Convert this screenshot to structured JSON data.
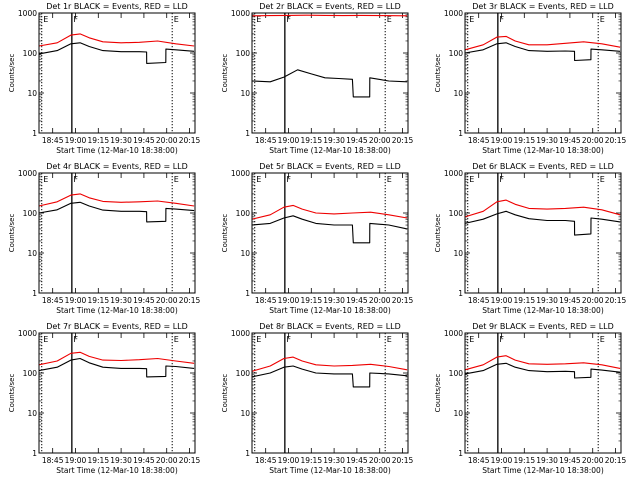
{
  "colors": {
    "events": "#000000",
    "lld": "#ee0000",
    "frame": "#000000",
    "background": "#ffffff"
  },
  "chart_data": [
    {
      "type": "line",
      "title": "Det 1r BLACK = Events, RED = LLD",
      "xlabel": "Start Time (12-Mar-10 18:38:00)",
      "ylabel": "Counts/sec",
      "y_scale": "log",
      "ylim": [
        1,
        1000
      ],
      "xlim": [
        18.6,
        20.31
      ],
      "x_ticks": [
        "18:45",
        "19:00",
        "19:15",
        "19:30",
        "19:45",
        "20:00",
        "20:15"
      ],
      "y_ticks": [
        "1",
        "10",
        "100",
        "1000"
      ],
      "markers": [
        {
          "label": "E",
          "x": 18.63
        },
        {
          "label": "F",
          "x": 18.96
        },
        {
          "label": "E",
          "x": 20.06
        }
      ],
      "series": [
        {
          "name": "Events",
          "color": "#000000",
          "x": [
            18.6,
            18.8,
            18.95,
            19.05,
            19.15,
            19.3,
            19.5,
            19.7,
            19.78,
            19.781,
            19.99,
            19.991,
            20.1,
            20.3
          ],
          "y": [
            95,
            115,
            170,
            180,
            145,
            115,
            108,
            108,
            106,
            55,
            58,
            125,
            120,
            110
          ]
        },
        {
          "name": "LLD",
          "color": "#ee0000",
          "x": [
            18.6,
            18.8,
            18.95,
            19.05,
            19.15,
            19.3,
            19.5,
            19.7,
            19.9,
            20.1,
            20.3
          ],
          "y": [
            150,
            180,
            280,
            300,
            240,
            190,
            180,
            185,
            200,
            170,
            150
          ]
        }
      ]
    },
    {
      "type": "line",
      "title": "Det 2r BLACK = Events, RED = LLD",
      "xlabel": "Start Time (12-Mar-10 18:38:00)",
      "ylabel": "Counts/sec",
      "y_scale": "log",
      "ylim": [
        1,
        1000
      ],
      "xlim": [
        18.6,
        20.31
      ],
      "x_ticks": [
        "18:45",
        "19:00",
        "19:15",
        "19:30",
        "19:45",
        "20:00",
        "20:15"
      ],
      "y_ticks": [
        "1",
        "10",
        "100",
        "1000"
      ],
      "markers": [
        {
          "label": "E",
          "x": 18.63
        },
        {
          "label": "F",
          "x": 18.96
        },
        {
          "label": "E",
          "x": 20.06
        }
      ],
      "series": [
        {
          "name": "Events",
          "color": "#000000",
          "x": [
            18.6,
            18.8,
            18.95,
            19.1,
            19.25,
            19.4,
            19.55,
            19.7,
            19.71,
            19.89,
            19.891,
            20.1,
            20.3
          ],
          "y": [
            20,
            19,
            25,
            38,
            30,
            24,
            23,
            22,
            8,
            8,
            24,
            20,
            19
          ]
        },
        {
          "name": "LLD",
          "color": "#ee0000",
          "x": [
            18.6,
            18.8,
            19.0,
            19.2,
            19.4,
            19.6,
            19.8,
            20.0,
            20.3
          ],
          "y": [
            850,
            860,
            870,
            880,
            870,
            860,
            870,
            860,
            850
          ]
        }
      ]
    },
    {
      "type": "line",
      "title": "Det 3r BLACK = Events, RED = LLD",
      "xlabel": "Start Time (12-Mar-10 18:38:00)",
      "ylabel": "Counts/sec",
      "y_scale": "log",
      "ylim": [
        1,
        1000
      ],
      "xlim": [
        18.6,
        20.31
      ],
      "x_ticks": [
        "18:45",
        "19:00",
        "19:15",
        "19:30",
        "19:45",
        "20:00",
        "20:15"
      ],
      "y_ticks": [
        "1",
        "10",
        "100",
        "1000"
      ],
      "markers": [
        {
          "label": "E",
          "x": 18.63
        },
        {
          "label": "F",
          "x": 18.96
        },
        {
          "label": "E",
          "x": 20.06
        }
      ],
      "series": [
        {
          "name": "Events",
          "color": "#000000",
          "x": [
            18.6,
            18.8,
            18.95,
            19.05,
            19.15,
            19.3,
            19.5,
            19.7,
            19.8,
            19.801,
            19.98,
            19.981,
            20.1,
            20.3
          ],
          "y": [
            100,
            120,
            170,
            180,
            145,
            115,
            110,
            112,
            110,
            65,
            68,
            125,
            120,
            110
          ]
        },
        {
          "name": "LLD",
          "color": "#ee0000",
          "x": [
            18.6,
            18.8,
            18.95,
            19.05,
            19.15,
            19.3,
            19.5,
            19.7,
            19.9,
            20.1,
            20.3
          ],
          "y": [
            120,
            160,
            250,
            260,
            200,
            160,
            160,
            175,
            190,
            170,
            140
          ]
        }
      ]
    },
    {
      "type": "line",
      "title": "Det 4r BLACK = Events, RED = LLD",
      "xlabel": "Start Time (12-Mar-10 18:38:00)",
      "ylabel": "Counts/sec",
      "y_scale": "log",
      "ylim": [
        1,
        1000
      ],
      "xlim": [
        18.6,
        20.31
      ],
      "x_ticks": [
        "18:45",
        "19:00",
        "19:15",
        "19:30",
        "19:45",
        "20:00",
        "20:15"
      ],
      "y_ticks": [
        "1",
        "10",
        "100",
        "1000"
      ],
      "markers": [
        {
          "label": "E",
          "x": 18.63
        },
        {
          "label": "F",
          "x": 18.96
        },
        {
          "label": "E",
          "x": 20.06
        }
      ],
      "series": [
        {
          "name": "Events",
          "color": "#000000",
          "x": [
            18.6,
            18.8,
            18.95,
            19.05,
            19.15,
            19.3,
            19.5,
            19.7,
            19.78,
            19.781,
            19.99,
            19.991,
            20.1,
            20.3
          ],
          "y": [
            100,
            120,
            175,
            185,
            150,
            118,
            110,
            110,
            108,
            60,
            62,
            130,
            125,
            115
          ]
        },
        {
          "name": "LLD",
          "color": "#ee0000",
          "x": [
            18.6,
            18.8,
            18.95,
            19.05,
            19.15,
            19.3,
            19.5,
            19.7,
            19.9,
            20.1,
            20.3
          ],
          "y": [
            150,
            190,
            280,
            300,
            240,
            195,
            185,
            190,
            200,
            175,
            150
          ]
        }
      ]
    },
    {
      "type": "line",
      "title": "Det 5r BLACK = Events, RED = LLD",
      "xlabel": "Start Time (12-Mar-10 18:38:00)",
      "ylabel": "Counts/sec",
      "y_scale": "log",
      "ylim": [
        1,
        1000
      ],
      "xlim": [
        18.6,
        20.31
      ],
      "x_ticks": [
        "18:45",
        "19:00",
        "19:15",
        "19:30",
        "19:45",
        "20:00",
        "20:15"
      ],
      "y_ticks": [
        "1",
        "10",
        "100",
        "1000"
      ],
      "markers": [
        {
          "label": "E",
          "x": 18.63
        },
        {
          "label": "F",
          "x": 18.96
        },
        {
          "label": "E",
          "x": 20.06
        }
      ],
      "series": [
        {
          "name": "Events",
          "color": "#000000",
          "x": [
            18.6,
            18.8,
            18.95,
            19.05,
            19.15,
            19.3,
            19.5,
            19.7,
            19.71,
            19.89,
            19.891,
            20.1,
            20.3
          ],
          "y": [
            50,
            55,
            75,
            85,
            70,
            55,
            50,
            50,
            18,
            18,
            55,
            50,
            40
          ]
        },
        {
          "name": "LLD",
          "color": "#ee0000",
          "x": [
            18.6,
            18.8,
            18.95,
            19.05,
            19.15,
            19.3,
            19.5,
            19.7,
            19.9,
            20.1,
            20.3
          ],
          "y": [
            70,
            90,
            140,
            155,
            125,
            100,
            95,
            100,
            105,
            90,
            75
          ]
        }
      ]
    },
    {
      "type": "line",
      "title": "Det 6r BLACK = Events, RED = LLD",
      "xlabel": "Start Time (12-Mar-10 18:38:00)",
      "ylabel": "Counts/sec",
      "y_scale": "log",
      "ylim": [
        1,
        1000
      ],
      "xlim": [
        18.6,
        20.31
      ],
      "x_ticks": [
        "18:45",
        "19:00",
        "19:15",
        "19:30",
        "19:45",
        "20:00",
        "20:15"
      ],
      "y_ticks": [
        "1",
        "10",
        "100",
        "1000"
      ],
      "markers": [
        {
          "label": "E",
          "x": 18.63
        },
        {
          "label": "F",
          "x": 18.96
        },
        {
          "label": "E",
          "x": 20.06
        }
      ],
      "series": [
        {
          "name": "Events",
          "color": "#000000",
          "x": [
            18.6,
            18.8,
            18.95,
            19.05,
            19.15,
            19.3,
            19.5,
            19.7,
            19.8,
            19.801,
            19.98,
            19.981,
            20.1,
            20.3
          ],
          "y": [
            55,
            70,
            95,
            110,
            90,
            72,
            65,
            65,
            62,
            28,
            30,
            75,
            70,
            60
          ]
        },
        {
          "name": "LLD",
          "color": "#ee0000",
          "x": [
            18.6,
            18.8,
            18.95,
            19.05,
            19.15,
            19.3,
            19.5,
            19.7,
            19.9,
            20.1,
            20.3
          ],
          "y": [
            80,
            110,
            190,
            210,
            165,
            130,
            125,
            130,
            140,
            120,
            90
          ]
        }
      ]
    },
    {
      "type": "line",
      "title": "Det 7r BLACK = Events, RED = LLD",
      "xlabel": "Start Time (12-Mar-10 18:38:00)",
      "ylabel": "Counts/sec",
      "y_scale": "log",
      "ylim": [
        1,
        1000
      ],
      "xlim": [
        18.6,
        20.31
      ],
      "x_ticks": [
        "18:45",
        "19:00",
        "19:15",
        "19:30",
        "19:45",
        "20:00",
        "20:15"
      ],
      "y_ticks": [
        "1",
        "10",
        "100",
        "1000"
      ],
      "markers": [
        {
          "label": "E",
          "x": 18.63
        },
        {
          "label": "F",
          "x": 18.96
        },
        {
          "label": "E",
          "x": 20.06
        }
      ],
      "series": [
        {
          "name": "Events",
          "color": "#000000",
          "x": [
            18.6,
            18.8,
            18.95,
            19.05,
            19.15,
            19.3,
            19.5,
            19.7,
            19.78,
            19.781,
            19.99,
            19.991,
            20.1,
            20.3
          ],
          "y": [
            115,
            140,
            210,
            230,
            180,
            140,
            130,
            130,
            128,
            80,
            82,
            150,
            145,
            130
          ]
        },
        {
          "name": "LLD",
          "color": "#ee0000",
          "x": [
            18.6,
            18.8,
            18.95,
            19.05,
            19.15,
            19.3,
            19.5,
            19.7,
            19.9,
            20.1,
            20.3
          ],
          "y": [
            160,
            200,
            310,
            330,
            260,
            210,
            205,
            215,
            230,
            200,
            175
          ]
        }
      ]
    },
    {
      "type": "line",
      "title": "Det 8r BLACK = Events, RED = LLD",
      "xlabel": "Start Time (12-Mar-10 18:38:00)",
      "ylabel": "Counts/sec",
      "y_scale": "log",
      "ylim": [
        1,
        1000
      ],
      "xlim": [
        18.6,
        20.31
      ],
      "x_ticks": [
        "18:45",
        "19:00",
        "19:15",
        "19:30",
        "19:45",
        "20:00",
        "20:15"
      ],
      "y_ticks": [
        "1",
        "10",
        "100",
        "1000"
      ],
      "markers": [
        {
          "label": "E",
          "x": 18.63
        },
        {
          "label": "F",
          "x": 18.96
        },
        {
          "label": "E",
          "x": 20.06
        }
      ],
      "series": [
        {
          "name": "Events",
          "color": "#000000",
          "x": [
            18.6,
            18.8,
            18.95,
            19.05,
            19.15,
            19.3,
            19.5,
            19.7,
            19.71,
            19.89,
            19.891,
            20.1,
            20.3
          ],
          "y": [
            80,
            100,
            140,
            150,
            125,
            100,
            95,
            95,
            45,
            45,
            100,
            95,
            85
          ]
        },
        {
          "name": "LLD",
          "color": "#ee0000",
          "x": [
            18.6,
            18.8,
            18.95,
            19.05,
            19.15,
            19.3,
            19.5,
            19.7,
            19.9,
            20.1,
            20.3
          ],
          "y": [
            110,
            150,
            230,
            250,
            200,
            160,
            150,
            155,
            165,
            145,
            120
          ]
        }
      ]
    },
    {
      "type": "line",
      "title": "Det 9r BLACK = Events, RED = LLD",
      "xlabel": "Start Time (12-Mar-10 18:38:00)",
      "ylabel": "Counts/sec",
      "y_scale": "log",
      "ylim": [
        1,
        1000
      ],
      "xlim": [
        18.6,
        20.31
      ],
      "x_ticks": [
        "18:45",
        "19:00",
        "19:15",
        "19:30",
        "19:45",
        "20:00",
        "20:15"
      ],
      "y_ticks": [
        "1",
        "10",
        "100",
        "1000"
      ],
      "markers": [
        {
          "label": "E",
          "x": 18.63
        },
        {
          "label": "F",
          "x": 18.96
        },
        {
          "label": "E",
          "x": 20.06
        }
      ],
      "series": [
        {
          "name": "Events",
          "color": "#000000",
          "x": [
            18.6,
            18.8,
            18.95,
            19.05,
            19.15,
            19.3,
            19.5,
            19.7,
            19.8,
            19.801,
            19.98,
            19.981,
            20.1,
            20.3
          ],
          "y": [
            95,
            115,
            165,
            175,
            140,
            115,
            108,
            110,
            108,
            75,
            78,
            125,
            118,
            105
          ]
        },
        {
          "name": "LLD",
          "color": "#ee0000",
          "x": [
            18.6,
            18.8,
            18.95,
            19.05,
            19.15,
            19.3,
            19.5,
            19.7,
            19.9,
            20.1,
            20.3
          ],
          "y": [
            120,
            160,
            250,
            270,
            210,
            170,
            165,
            170,
            180,
            160,
            130
          ]
        }
      ]
    }
  ]
}
